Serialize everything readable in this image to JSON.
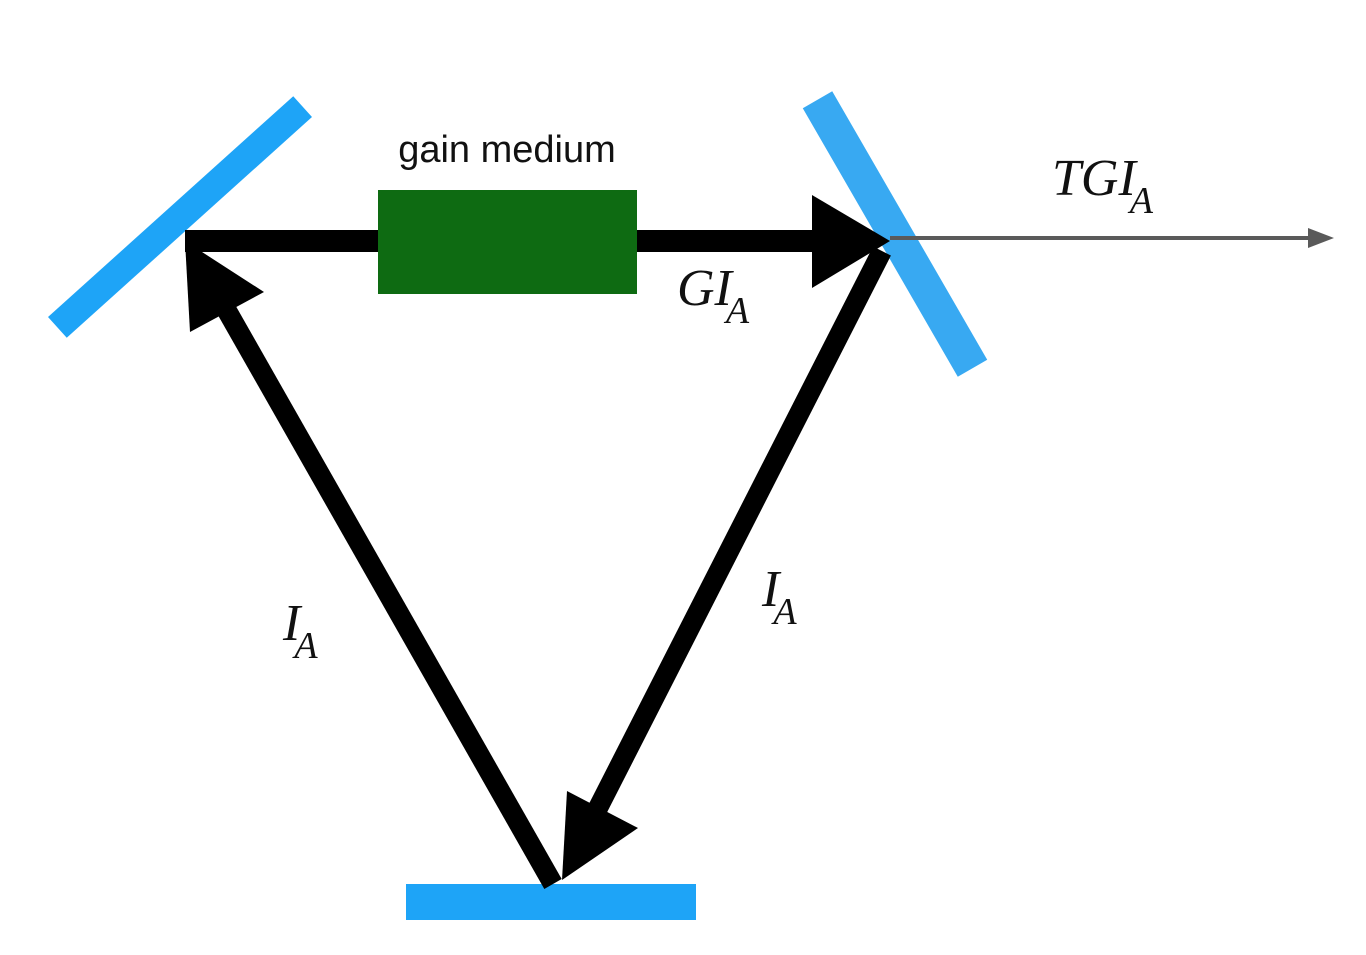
{
  "diagram": {
    "gain_medium_label": "gain medium",
    "labels": {
      "transmitted": {
        "main": "TGI",
        "sub": "A"
      },
      "amplified": {
        "main": "GI",
        "sub": "A"
      },
      "right_leg": {
        "main": "I",
        "sub": "A"
      },
      "left_leg": {
        "main": "I",
        "sub": "A"
      }
    },
    "colors": {
      "mirror": "#1ea4f7",
      "output_mirror": "#38a9f2",
      "gain_medium": "#0e6b12",
      "beam": "#000000",
      "output_beam": "#5a5a5a"
    }
  }
}
